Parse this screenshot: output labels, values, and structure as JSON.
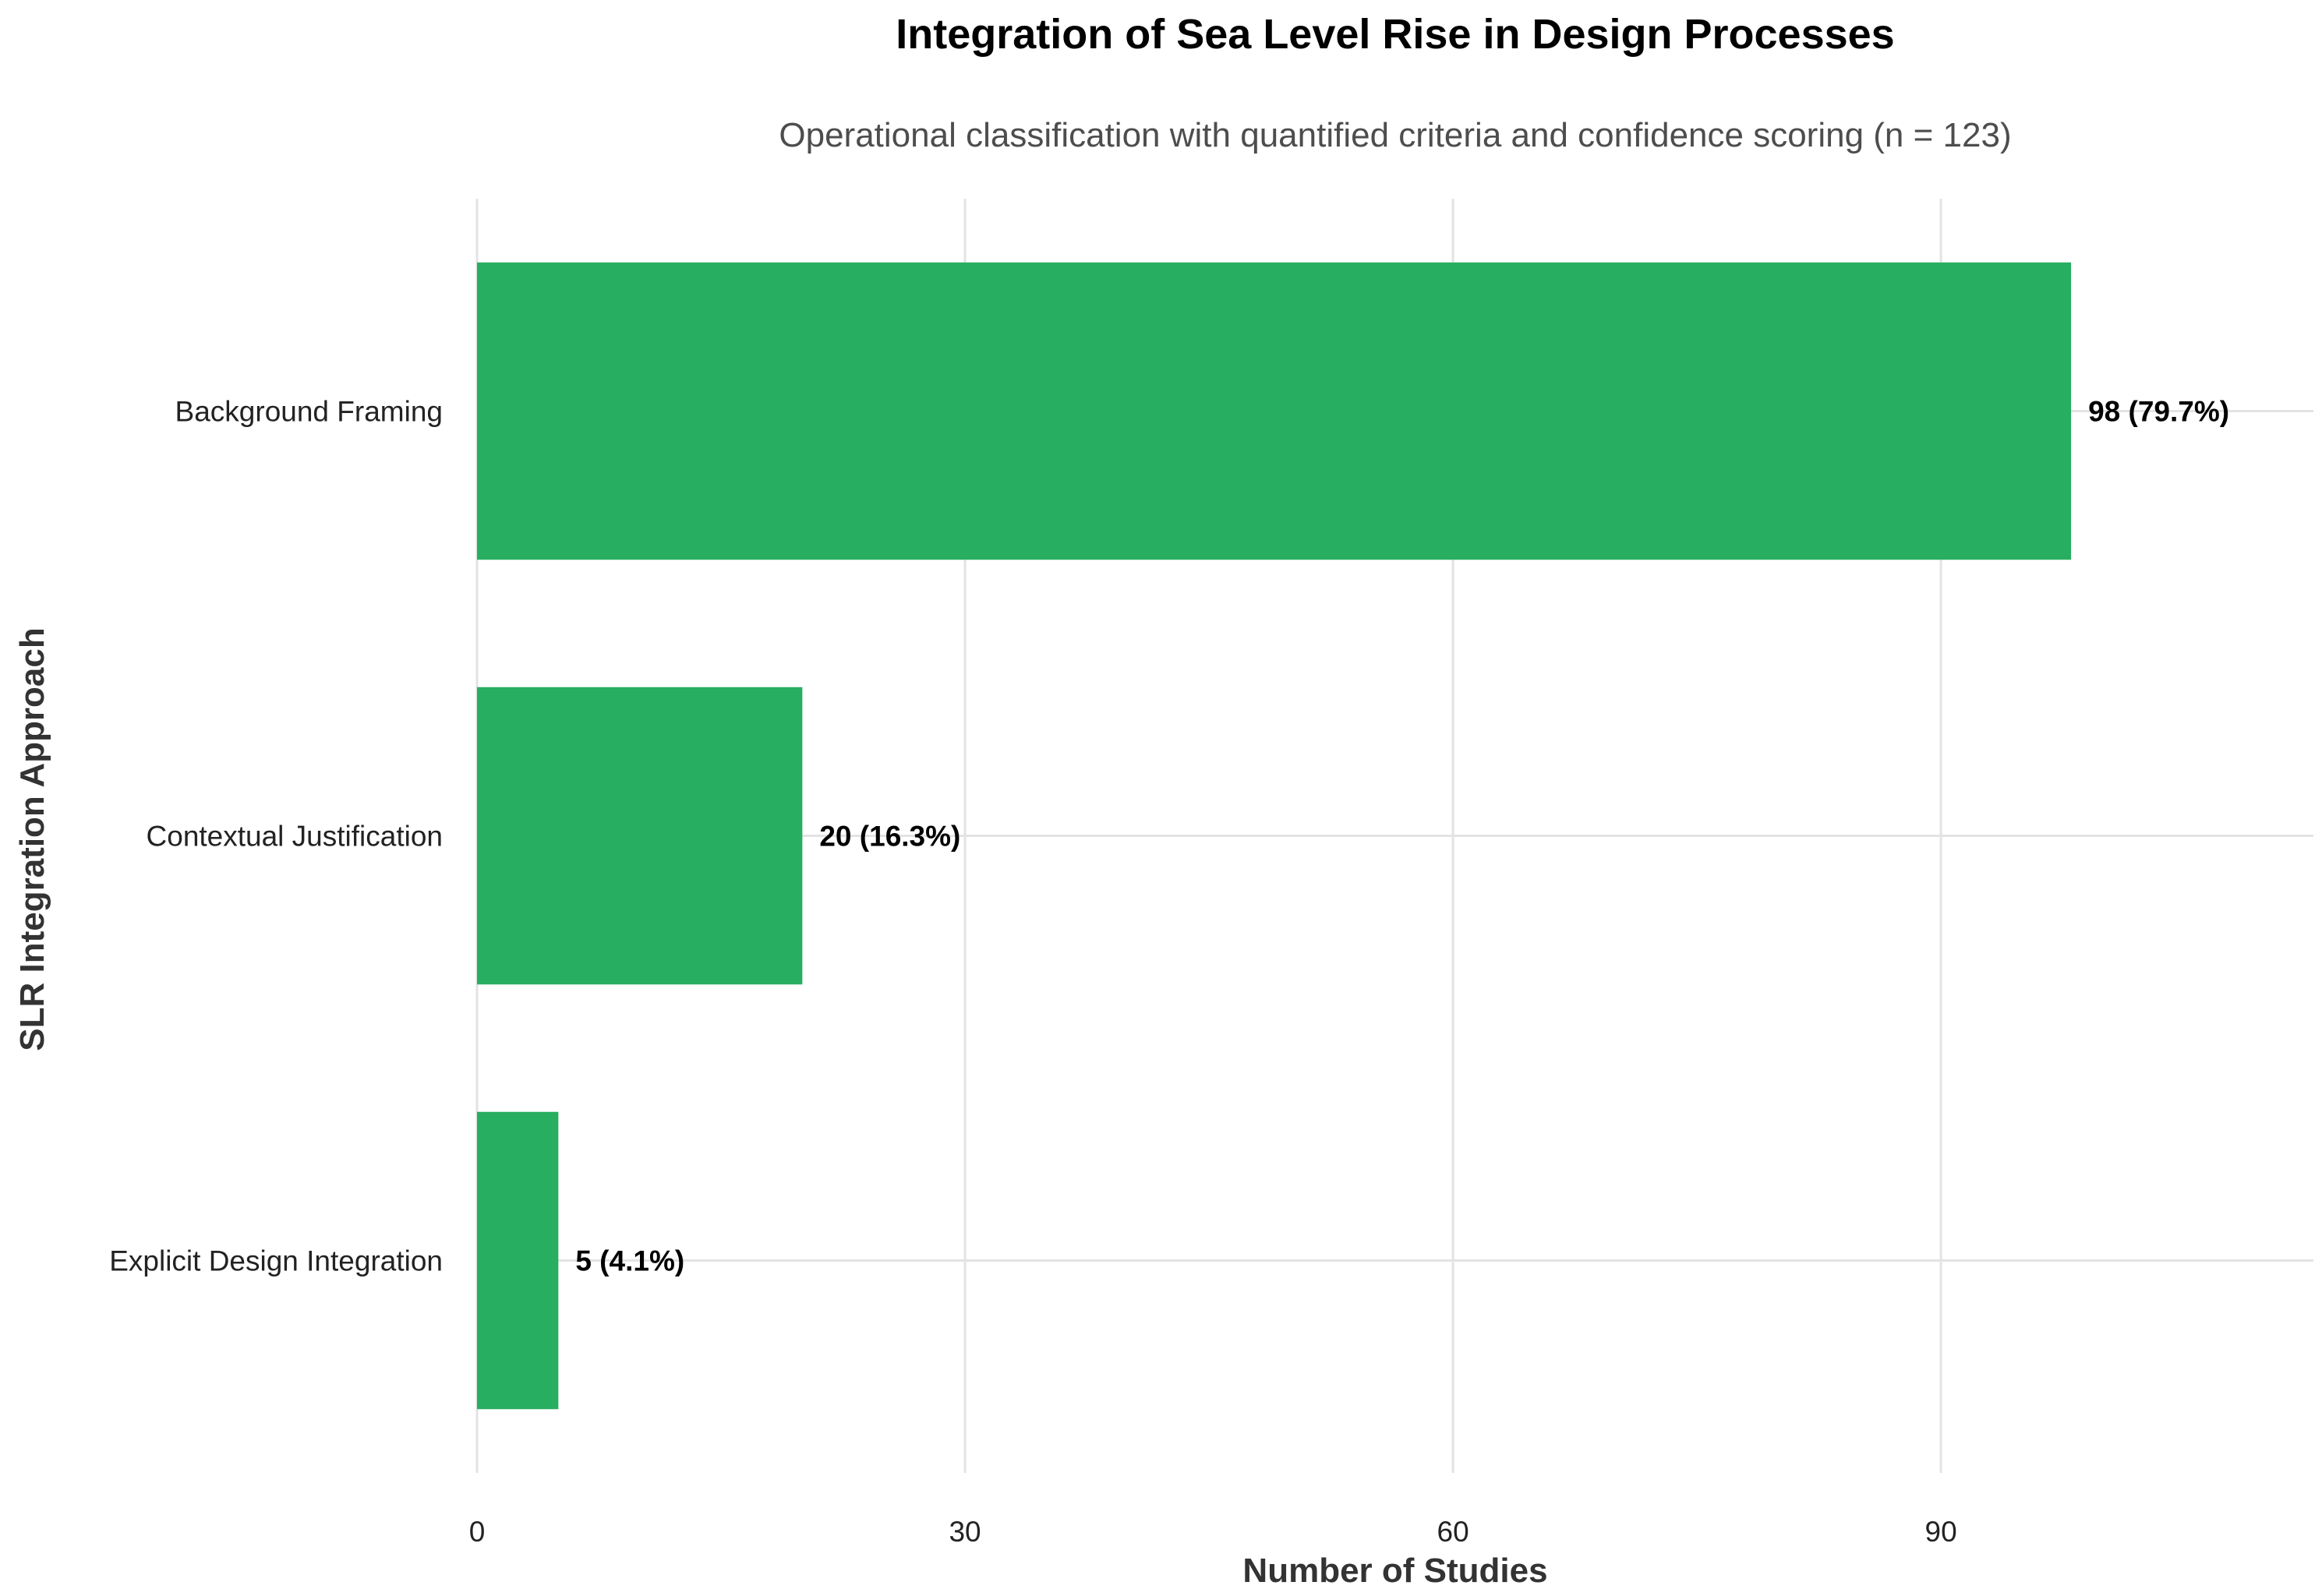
{
  "chart_data": {
    "type": "bar",
    "orientation": "horizontal",
    "title": "Integration of Sea Level Rise in Design Processes",
    "subtitle": "Operational classification with quantified criteria and confidence scoring (n = 123)",
    "xlabel": "Number of Studies",
    "ylabel": "SLR Integration Approach",
    "categories": [
      "Background Framing",
      "Contextual Justification",
      "Explicit Design Integration"
    ],
    "values": [
      98,
      20,
      5
    ],
    "data_labels": [
      "98 (79.7%)",
      "20 (16.3%)",
      "5 (4.1%)"
    ],
    "x_ticks": [
      0,
      30,
      60,
      90
    ],
    "x_tick_labels": [
      "0",
      "30",
      "60",
      "90"
    ],
    "xlim": [
      0,
      112.9
    ],
    "bar_color": "#27ae60",
    "grid": true,
    "legend": "none"
  }
}
